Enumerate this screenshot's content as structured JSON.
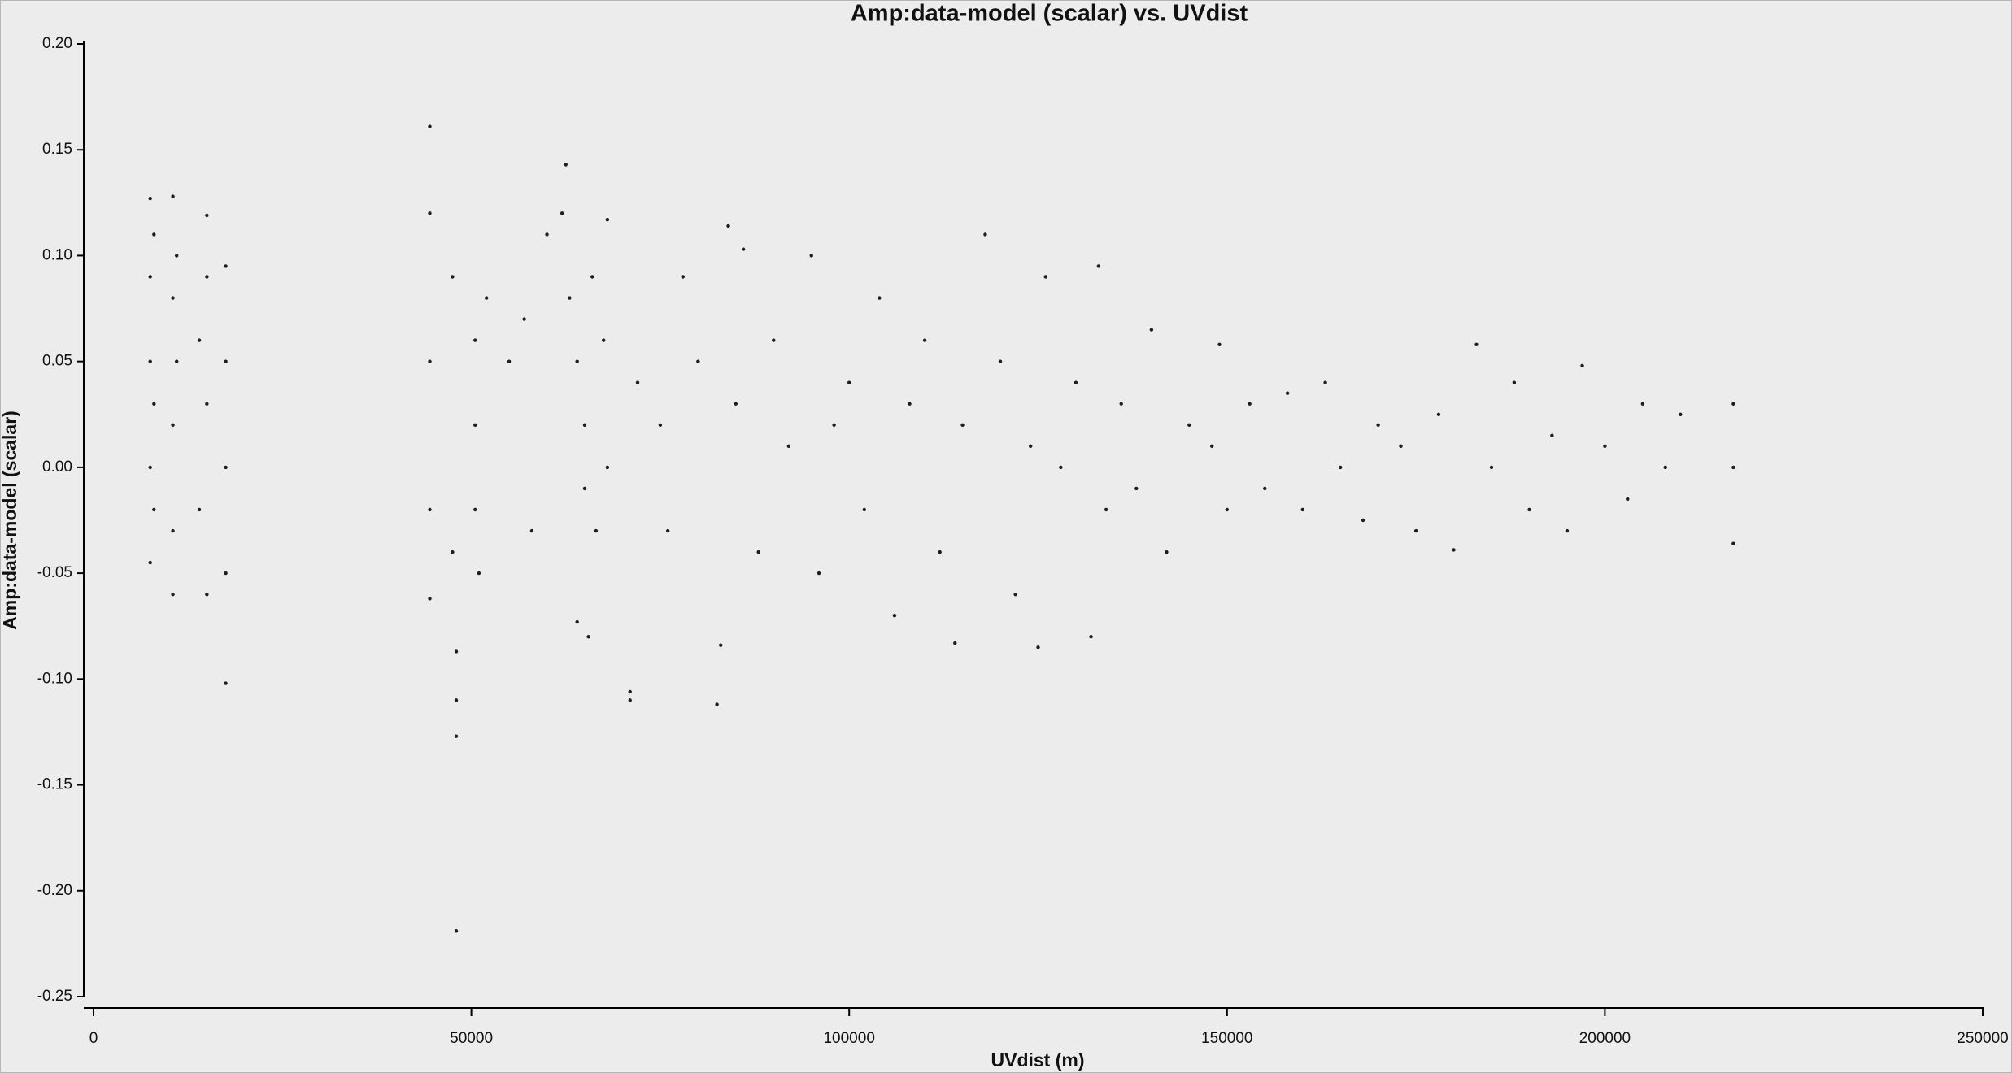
{
  "chart_data": {
    "type": "scatter",
    "title": "Amp:data-model (scalar) vs. UVdist",
    "x_label": "UVdist (m)",
    "y_label": "Amp:data-model (scalar)",
    "color": "#1e1e1e",
    "xlim": [
      0,
      250000
    ],
    "xticks": [
      0,
      50000,
      100000,
      150000,
      200000,
      250000
    ],
    "ylim": [
      -0.25,
      0.2
    ],
    "yticks": [
      {
        "value": 0.2,
        "label": "0.20"
      },
      0.15,
      {
        "value": 0.1,
        "label": "0.10"
      },
      0.05,
      {
        "value": 0,
        "label": "0.00"
      },
      -0.05,
      {
        "value": -0.1,
        "label": "-0.10"
      },
      -0.15,
      {
        "value": -0.2,
        "label": "-0.20"
      },
      -0.25
    ],
    "x": [
      7500,
      7500,
      7500,
      7500,
      7500,
      8000,
      8000,
      8000,
      10500,
      10500,
      10500,
      10500,
      10500,
      11000,
      11000,
      14000,
      14000,
      15000,
      15000,
      15000,
      15000,
      17500,
      17500,
      17500,
      17500,
      17500,
      44500,
      44500,
      44500,
      44500,
      44500,
      47500,
      47500,
      48000,
      48000,
      48000,
      48000,
      50500,
      50500,
      50500,
      51000,
      52000,
      55000,
      57000,
      58000,
      60000,
      62000,
      62500,
      63000,
      64000,
      65000,
      65000,
      66000,
      66500,
      67500,
      68000,
      68000,
      65500,
      64000,
      71000,
      71000,
      72000,
      75000,
      76000,
      78000,
      80000,
      82500,
      83000,
      84000,
      85000,
      86000,
      88000,
      90000,
      92000,
      95000,
      96000,
      98000,
      100000,
      102000,
      104000,
      106000,
      108000,
      110000,
      112000,
      114000,
      115000,
      118000,
      120000,
      122000,
      124000,
      125000,
      126000,
      128000,
      130000,
      132000,
      133000,
      134000,
      136000,
      138000,
      140000,
      142000,
      145000,
      148000,
      149000,
      150000,
      153000,
      155000,
      158000,
      160000,
      163000,
      165000,
      168000,
      170000,
      173000,
      175000,
      178000,
      180000,
      183000,
      185000,
      188000,
      190000,
      193000,
      195000,
      197000,
      200000,
      203000,
      205000,
      208000,
      210000,
      217000,
      217000,
      217000
    ],
    "values": [
      0.127,
      0.09,
      0.05,
      0.0,
      -0.045,
      0.11,
      0.03,
      -0.02,
      0.128,
      0.08,
      0.02,
      -0.03,
      -0.06,
      0.1,
      0.05,
      0.06,
      -0.02,
      0.119,
      0.09,
      0.03,
      -0.06,
      0.095,
      0.05,
      0.0,
      -0.05,
      -0.102,
      0.161,
      0.12,
      0.05,
      -0.02,
      -0.062,
      0.09,
      -0.04,
      -0.087,
      -0.11,
      -0.127,
      -0.219,
      0.06,
      0.02,
      -0.02,
      -0.05,
      0.08,
      0.05,
      0.07,
      -0.03,
      0.11,
      0.12,
      0.143,
      0.08,
      0.05,
      0.02,
      -0.01,
      0.09,
      -0.03,
      0.06,
      0.117,
      0.0,
      -0.08,
      -0.073,
      -0.106,
      -0.11,
      0.04,
      0.02,
      -0.03,
      0.09,
      0.05,
      -0.112,
      -0.084,
      0.114,
      0.03,
      0.103,
      -0.04,
      0.06,
      0.01,
      0.1,
      -0.05,
      0.02,
      0.04,
      -0.02,
      0.08,
      -0.07,
      0.03,
      0.06,
      -0.04,
      -0.083,
      0.02,
      0.11,
      0.05,
      -0.06,
      0.01,
      -0.085,
      0.09,
      0.0,
      0.04,
      -0.08,
      0.095,
      -0.02,
      0.03,
      -0.01,
      0.065,
      -0.04,
      0.02,
      0.01,
      0.058,
      -0.02,
      0.03,
      -0.01,
      0.035,
      -0.02,
      0.04,
      0.0,
      -0.025,
      0.02,
      0.01,
      -0.03,
      0.025,
      -0.039,
      0.058,
      0.0,
      0.04,
      -0.02,
      0.015,
      -0.03,
      0.048,
      0.01,
      -0.015,
      0.03,
      0.0,
      0.025,
      0.03,
      0.0,
      -0.036
    ]
  }
}
